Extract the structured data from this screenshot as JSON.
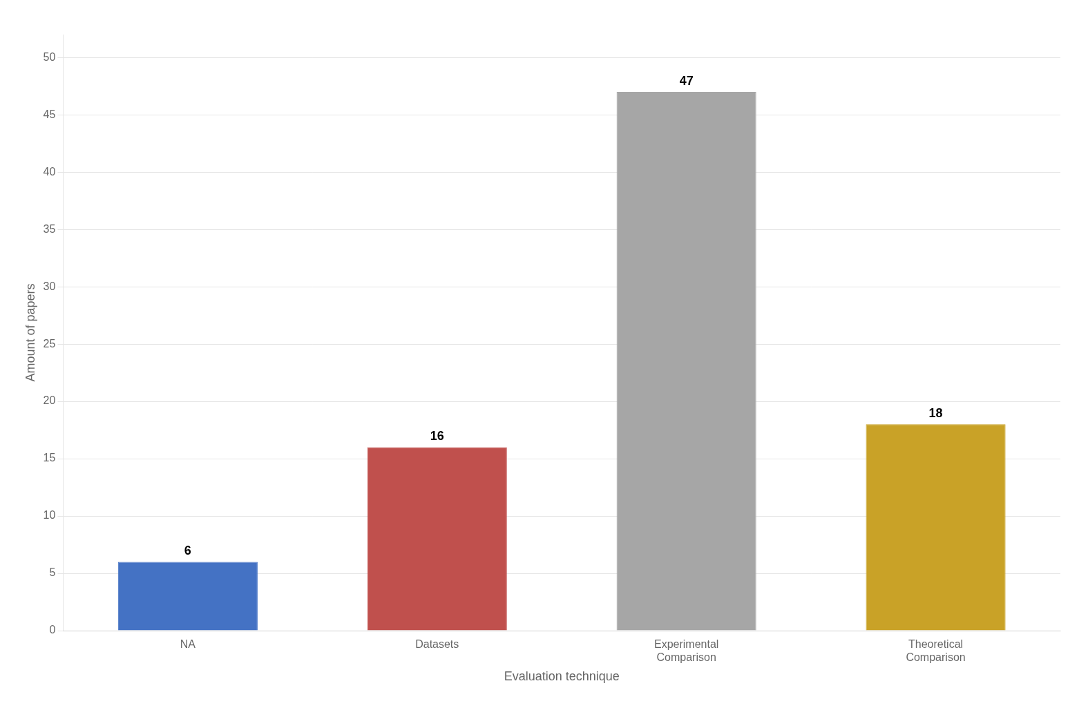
{
  "chart_data": {
    "type": "bar",
    "xlabel": "Evaluation technique",
    "ylabel": "Amount of papers",
    "categories": [
      "NA",
      "Datasets",
      "Experimental\nComparison",
      "Theoretical\nComparison"
    ],
    "values": [
      6,
      16,
      47,
      18
    ],
    "colors": [
      "#4472C4",
      "#C0504D",
      "#A6A6A6",
      "#C9A227"
    ],
    "ylim": [
      0,
      52
    ],
    "yticks": [
      0,
      5,
      10,
      15,
      20,
      25,
      30,
      35,
      40,
      45,
      50
    ],
    "grid": true,
    "data_labels": true
  }
}
